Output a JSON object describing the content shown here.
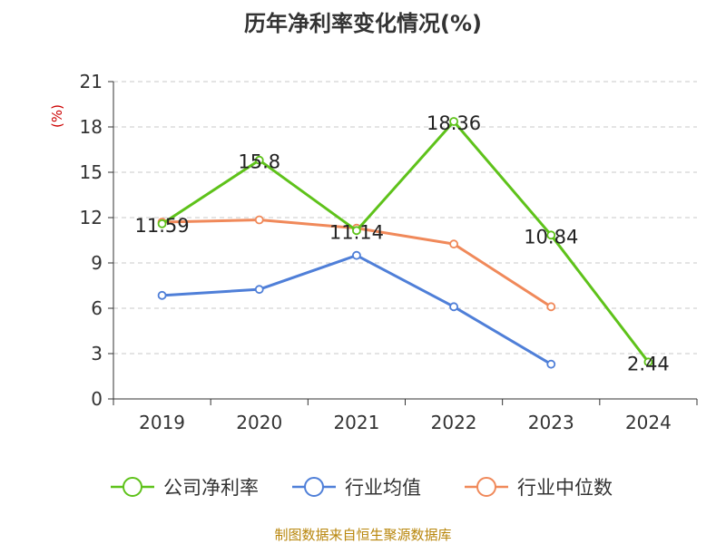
{
  "chart_data": {
    "type": "line",
    "title": "历年净利率变化情况(%)",
    "ylabel": "(%)",
    "categories": [
      "2019",
      "2020",
      "2021",
      "2022",
      "2023",
      "2024"
    ],
    "ylim": [
      0,
      21
    ],
    "yticks": [
      "0",
      "3",
      "6",
      "9",
      "12",
      "15",
      "18",
      "21"
    ],
    "grid": true,
    "legend_position": "bottom",
    "series": [
      {
        "name": "公司净利率",
        "color": "#5ec21a",
        "values": [
          11.59,
          15.8,
          11.14,
          18.36,
          10.84,
          2.44
        ],
        "labels": [
          "11.59",
          "15.8",
          "11.14",
          "18.36",
          "10.84",
          "2.44"
        ]
      },
      {
        "name": "行业均值",
        "color": "#4f7fd8",
        "values": [
          6.85,
          7.25,
          9.5,
          6.1,
          2.3,
          null
        ]
      },
      {
        "name": "行业中位数",
        "color": "#f0895a",
        "values": [
          11.7,
          11.85,
          11.3,
          10.25,
          6.1,
          null
        ]
      }
    ],
    "source": "制图数据来自恒生聚源数据库"
  }
}
